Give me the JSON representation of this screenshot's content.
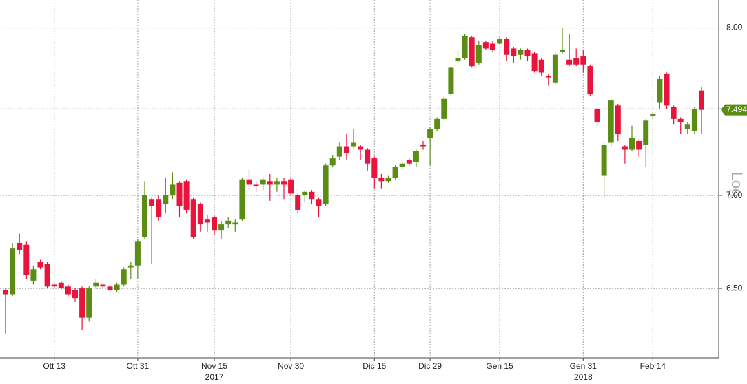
{
  "chart_data": {
    "type": "candlestick",
    "y_axis_label": "Log",
    "log_scale": true,
    "grid": true,
    "up_color": "#5b8c14",
    "down_color": "#e8143c",
    "ylim": [
      6.15,
      8.18
    ],
    "yticks": [
      {
        "value": 6.5,
        "label": "6.50"
      },
      {
        "value": 7,
        "label": "7.00"
      },
      {
        "value": 7.5,
        "label": "7.50"
      },
      {
        "value": 8,
        "label": "8.00"
      }
    ],
    "categories": [
      null,
      null,
      null,
      null,
      null,
      null,
      null,
      "Ott 13",
      null,
      null,
      null,
      null,
      null,
      null,
      null,
      null,
      null,
      null,
      null,
      "Ott 31",
      null,
      null,
      null,
      null,
      null,
      null,
      null,
      null,
      null,
      null,
      "Nov 15",
      null,
      null,
      null,
      null,
      null,
      null,
      null,
      null,
      null,
      null,
      "Nov 30",
      null,
      null,
      null,
      null,
      null,
      null,
      null,
      null,
      null,
      null,
      null,
      "Dic 15",
      null,
      null,
      null,
      null,
      null,
      null,
      null,
      "Dic 29",
      null,
      null,
      null,
      null,
      null,
      null,
      null,
      null,
      null,
      "Gen 15",
      null,
      null,
      null,
      null,
      null,
      null,
      null,
      null,
      null,
      null,
      null,
      "Gen 31",
      null,
      null,
      null,
      null,
      null,
      null,
      null,
      null,
      null,
      "Feb 14",
      null,
      null,
      null,
      null,
      null,
      null,
      null
    ],
    "year_labels": [
      {
        "label": "2017",
        "at": "Nov 15"
      },
      {
        "label": "2018",
        "at": "Gen 31"
      }
    ],
    "open": [
      6.49,
      6.47,
      6.74,
      6.73,
      6.54,
      6.64,
      6.63,
      6.52,
      6.53,
      6.51,
      6.49,
      6.5,
      6.35,
      6.51,
      6.52,
      6.51,
      6.49,
      6.52,
      6.61,
      6.62,
      6.77,
      6.98,
      6.98,
      6.95,
      7.0,
      7.07,
      7.08,
      6.98,
      6.95,
      6.87,
      6.88,
      6.81,
      6.84,
      6.84,
      6.87,
      7.09,
      7.06,
      7.06,
      7.08,
      7.06,
      7.08,
      7.09,
      7.0,
      7.0,
      7.02,
      6.98,
      6.95,
      7.17,
      7.22,
      7.28,
      7.28,
      7.28,
      7.26,
      7.21,
      7.1,
      7.08,
      7.1,
      7.16,
      7.2,
      7.19,
      7.29,
      7.33,
      7.38,
      7.44,
      7.59,
      7.79,
      7.81,
      7.94,
      7.78,
      7.91,
      7.9,
      7.9,
      7.93,
      7.87,
      7.83,
      7.86,
      7.84,
      7.8,
      7.7,
      7.66,
      7.85,
      7.8,
      7.81,
      7.82,
      7.76,
      7.5,
      7.11,
      7.3,
      7.52,
      7.28,
      7.26,
      7.31,
      7.29,
      7.46,
      7.54,
      7.71,
      7.51,
      7.44,
      7.38,
      7.37,
      7.61
    ],
    "high": [
      6.5,
      6.74,
      6.79,
      6.75,
      6.62,
      6.65,
      6.64,
      6.53,
      6.54,
      6.52,
      6.5,
      6.51,
      6.51,
      6.55,
      6.53,
      6.52,
      6.53,
      6.61,
      6.64,
      6.76,
      7.08,
      6.99,
      7.0,
      7.1,
      7.13,
      7.08,
      7.09,
      6.99,
      6.96,
      6.89,
      6.89,
      6.86,
      6.88,
      6.87,
      7.1,
      7.15,
      7.08,
      7.1,
      7.12,
      7.1,
      7.1,
      7.1,
      7.01,
      7.03,
      7.03,
      6.99,
      7.18,
      7.23,
      7.3,
      7.35,
      7.38,
      7.29,
      7.27,
      7.22,
      7.12,
      7.11,
      7.17,
      7.19,
      7.21,
      7.26,
      7.31,
      7.39,
      7.45,
      7.57,
      7.76,
      7.86,
      7.96,
      7.95,
      7.92,
      7.92,
      7.92,
      7.95,
      7.94,
      7.88,
      7.87,
      7.87,
      7.85,
      7.81,
      7.71,
      7.84,
      8.0,
      7.96,
      7.87,
      7.86,
      7.77,
      7.51,
      7.3,
      7.56,
      7.53,
      7.29,
      7.4,
      7.32,
      7.44,
      7.48,
      7.7,
      7.72,
      7.52,
      7.45,
      7.42,
      7.51,
      7.63
    ],
    "low": [
      6.27,
      6.46,
      6.68,
      6.55,
      6.52,
      6.6,
      6.5,
      6.5,
      6.49,
      6.46,
      6.43,
      6.29,
      6.33,
      6.5,
      6.5,
      6.48,
      6.48,
      6.51,
      6.55,
      6.55,
      6.76,
      6.63,
      6.86,
      6.9,
      6.98,
      6.88,
      6.9,
      6.76,
      6.8,
      6.8,
      6.78,
      6.76,
      6.82,
      6.8,
      6.86,
      7.03,
      7.02,
      7.03,
      6.97,
      7.02,
      6.98,
      7.0,
      6.9,
      6.96,
      6.95,
      6.88,
      6.94,
      7.16,
      7.2,
      7.2,
      7.27,
      7.2,
      7.14,
      7.04,
      7.04,
      7.07,
      7.09,
      7.15,
      7.17,
      7.16,
      7.26,
      7.17,
      7.37,
      7.43,
      7.58,
      7.78,
      7.8,
      7.75,
      7.77,
      7.86,
      7.85,
      7.89,
      7.79,
      7.78,
      7.8,
      7.79,
      7.72,
      7.7,
      7.64,
      7.65,
      7.84,
      7.76,
      7.76,
      7.72,
      7.58,
      7.4,
      6.99,
      7.28,
      7.31,
      7.18,
      7.25,
      7.22,
      7.16,
      7.44,
      7.5,
      7.5,
      7.41,
      7.35,
      7.35,
      7.35,
      7.35
    ],
    "close": [
      6.47,
      6.71,
      6.7,
      6.57,
      6.6,
      6.61,
      6.51,
      6.51,
      6.5,
      6.47,
      6.45,
      6.35,
      6.5,
      6.53,
      6.51,
      6.49,
      6.52,
      6.6,
      6.62,
      6.75,
      7.0,
      6.94,
      6.88,
      7.0,
      7.06,
      6.94,
      6.92,
      6.77,
      6.84,
      6.85,
      6.81,
      6.84,
      6.86,
      6.85,
      7.09,
      7.06,
      7.05,
      7.09,
      7.06,
      7.08,
      7.06,
      7.01,
      6.92,
      7.02,
      6.98,
      6.94,
      7.17,
      7.21,
      7.28,
      7.24,
      7.3,
      7.26,
      7.18,
      7.1,
      7.08,
      7.1,
      7.16,
      7.18,
      7.18,
      7.25,
      7.28,
      7.38,
      7.44,
      7.56,
      7.75,
      7.81,
      7.95,
      7.76,
      7.89,
      7.87,
      7.86,
      7.93,
      7.83,
      7.82,
      7.86,
      7.82,
      7.73,
      7.72,
      7.69,
      7.83,
      7.86,
      7.77,
      7.77,
      7.77,
      7.59,
      7.42,
      7.29,
      7.55,
      7.35,
      7.26,
      7.33,
      7.26,
      7.43,
      7.47,
      7.68,
      7.52,
      7.44,
      7.42,
      7.41,
      7.5,
      7.494
    ]
  }
}
